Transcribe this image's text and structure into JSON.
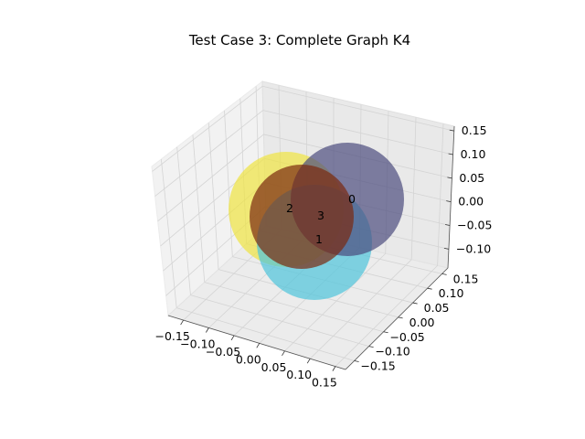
{
  "chart_data": {
    "type": "scatter",
    "title": "Test Case 3: Complete Graph K4",
    "xlabel": "",
    "ylabel": "",
    "zlabel": "",
    "xlim": [
      -0.18,
      0.17
    ],
    "ylim": [
      -0.18,
      0.17
    ],
    "zlim": [
      -0.14,
      0.16
    ],
    "x_ticks": [
      "−0.15",
      "−0.10",
      "−0.05",
      "0.00",
      "0.05",
      "0.10",
      "0.15"
    ],
    "y_ticks": [
      "−0.15",
      "−0.10",
      "−0.05",
      "0.00",
      "0.05",
      "0.10",
      "0.15"
    ],
    "z_ticks": [
      "−0.10",
      "−0.05",
      "0.00",
      "0.05",
      "0.10",
      "0.15"
    ],
    "grid": true,
    "nodes": [
      {
        "label": "2",
        "color": "#f0e442"
      },
      {
        "label": "1",
        "color": "#4fc4dc"
      },
      {
        "label": "0",
        "color": "#4b4b7d"
      },
      {
        "label": "3",
        "color": "#7a2a10"
      }
    ]
  }
}
